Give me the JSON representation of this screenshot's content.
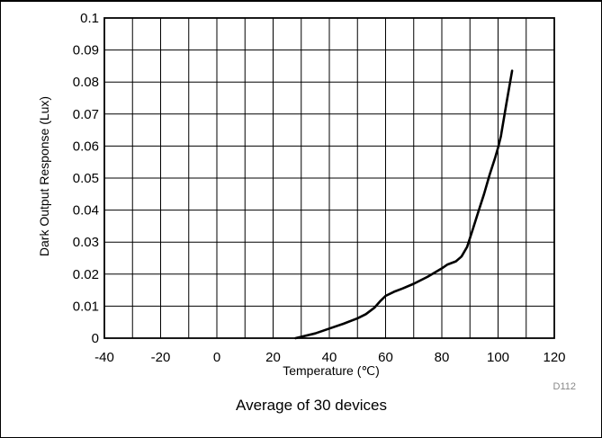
{
  "chart_data": {
    "type": "line",
    "xlabel": "Temperature (℃)",
    "ylabel": "Dark Output Response (Lux)",
    "xlim": [
      -40,
      120
    ],
    "ylim": [
      0,
      0.1
    ],
    "x_ticks": [
      -40,
      -20,
      0,
      20,
      40,
      60,
      80,
      100,
      120
    ],
    "y_ticks": [
      0,
      0.01,
      0.02,
      0.03,
      0.04,
      0.05,
      0.06,
      0.07,
      0.08,
      0.09,
      0.1
    ],
    "x_tick_labels": [
      "-40",
      "-20",
      "0",
      "20",
      "40",
      "60",
      "80",
      "100",
      "120"
    ],
    "y_tick_labels": [
      "0",
      "0.01",
      "0.02",
      "0.03",
      "0.04",
      "0.05",
      "0.06",
      "0.07",
      "0.08",
      "0.09",
      "0.1"
    ],
    "grid": true,
    "series": [
      {
        "color": "#000000",
        "x": [
          28,
          35,
          40,
          45,
          50,
          53,
          56,
          58,
          60,
          63,
          66,
          70,
          75,
          80,
          82,
          85,
          87,
          89,
          91,
          93,
          95,
          97,
          99,
          100,
          101,
          103,
          105
        ],
        "y": [
          0,
          0.0015,
          0.003,
          0.0045,
          0.0062,
          0.0075,
          0.0095,
          0.0115,
          0.0132,
          0.0145,
          0.0155,
          0.017,
          0.0192,
          0.0218,
          0.023,
          0.024,
          0.0255,
          0.0285,
          0.034,
          0.0395,
          0.045,
          0.051,
          0.0565,
          0.0595,
          0.063,
          0.0735,
          0.0835
        ]
      }
    ]
  },
  "caption": "Average of 30 devices",
  "figure_id": "D112"
}
